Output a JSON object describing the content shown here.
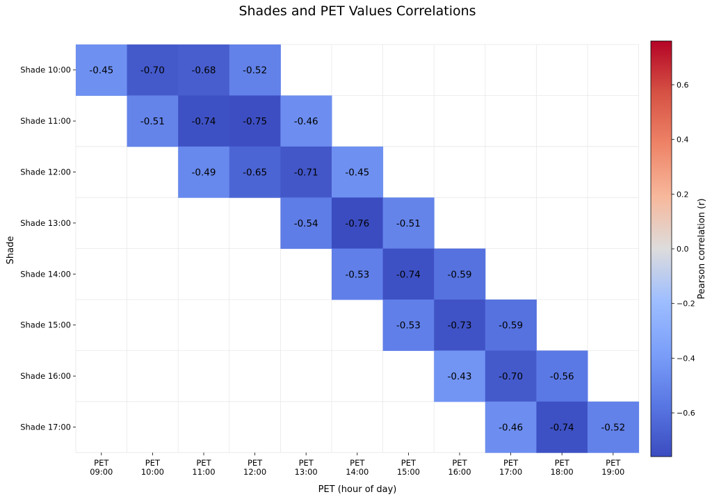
{
  "chart_data": {
    "type": "heatmap",
    "title": "Shades and PET Values Correlations",
    "xlabel": "PET (hour of day)",
    "ylabel": "Shade",
    "x_categories": [
      [
        "PET",
        "09:00"
      ],
      [
        "PET",
        "10:00"
      ],
      [
        "PET",
        "11:00"
      ],
      [
        "PET",
        "12:00"
      ],
      [
        "PET",
        "13:00"
      ],
      [
        "PET",
        "14:00"
      ],
      [
        "PET",
        "15:00"
      ],
      [
        "PET",
        "16:00"
      ],
      [
        "PET",
        "17:00"
      ],
      [
        "PET",
        "18:00"
      ],
      [
        "PET",
        "19:00"
      ]
    ],
    "y_categories": [
      "Shade 10:00",
      "Shade 11:00",
      "Shade 12:00",
      "Shade 13:00",
      "Shade 14:00",
      "Shade 15:00",
      "Shade 16:00",
      "Shade 17:00"
    ],
    "values": [
      [
        -0.45,
        -0.7,
        -0.68,
        -0.52,
        null,
        null,
        null,
        null,
        null,
        null,
        null
      ],
      [
        null,
        -0.51,
        -0.74,
        -0.75,
        -0.46,
        null,
        null,
        null,
        null,
        null,
        null
      ],
      [
        null,
        null,
        -0.49,
        -0.65,
        -0.71,
        -0.45,
        null,
        null,
        null,
        null,
        null
      ],
      [
        null,
        null,
        null,
        null,
        -0.54,
        -0.76,
        -0.51,
        null,
        null,
        null,
        null
      ],
      [
        null,
        null,
        null,
        null,
        null,
        -0.53,
        -0.74,
        -0.59,
        null,
        null,
        null
      ],
      [
        null,
        null,
        null,
        null,
        null,
        null,
        -0.53,
        -0.73,
        -0.59,
        null,
        null
      ],
      [
        null,
        null,
        null,
        null,
        null,
        null,
        null,
        -0.43,
        -0.7,
        -0.56,
        null
      ],
      [
        null,
        null,
        null,
        null,
        null,
        null,
        null,
        null,
        -0.46,
        -0.74,
        -0.52
      ]
    ],
    "colorbar": {
      "label": "Pearson correlation (r)",
      "colormap": "coolwarm",
      "range": [
        -0.76,
        0.76
      ],
      "ticks": [
        0.6,
        0.4,
        0.2,
        0.0,
        -0.2,
        -0.4,
        -0.6
      ],
      "tick_labels": [
        "0.6",
        "0.4",
        "0.2",
        "0.0",
        "−0.2",
        "−0.4",
        "−0.6"
      ]
    },
    "grid": true
  }
}
